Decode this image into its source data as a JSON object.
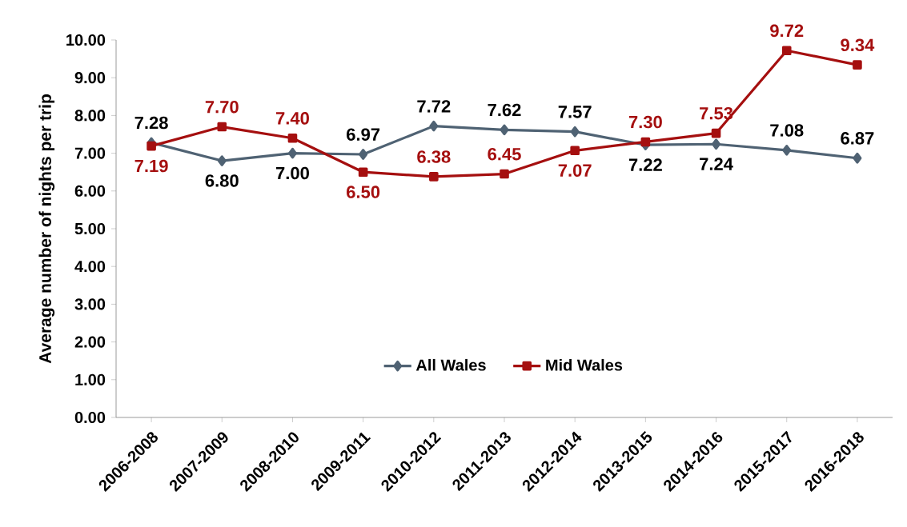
{
  "chart_data": {
    "type": "line",
    "ylabel": "Average number of nights per trip",
    "categories": [
      "2006-2008",
      "2007-2009",
      "2008-2010",
      "2009-2011",
      "2010-2012",
      "2011-2013",
      "2012-2014",
      "2013-2015",
      "2014-2016",
      "2015-2017",
      "2016-2018"
    ],
    "series": [
      {
        "name": "All Wales",
        "color": "#4f6273",
        "marker": "diamond",
        "values": [
          7.28,
          6.8,
          7.0,
          6.97,
          7.72,
          7.62,
          7.57,
          7.22,
          7.24,
          7.08,
          6.87
        ],
        "value_labels": [
          "7.28",
          "6.80",
          "7.00",
          "6.97",
          "7.72",
          "7.62",
          "7.57",
          "7.22",
          "7.24",
          "7.08",
          "6.87"
        ]
      },
      {
        "name": "Mid Wales",
        "color": "#a50f0f",
        "marker": "square",
        "values": [
          7.19,
          7.7,
          7.4,
          6.5,
          6.38,
          6.45,
          7.07,
          7.3,
          7.53,
          9.72,
          9.34
        ],
        "value_labels": [
          "7.19",
          "7.70",
          "7.40",
          "6.50",
          "6.38",
          "6.45",
          "7.07",
          "7.30",
          "7.53",
          "9.72",
          "9.34"
        ]
      }
    ],
    "ylim": [
      0,
      10
    ],
    "yticks": [
      {
        "value": 0,
        "label": "0.00"
      },
      {
        "value": 1,
        "label": "1.00"
      },
      {
        "value": 2,
        "label": "2.00"
      },
      {
        "value": 3,
        "label": "3.00"
      },
      {
        "value": 4,
        "label": "4.00"
      },
      {
        "value": 5,
        "label": "5.00"
      },
      {
        "value": 6,
        "label": "6.00"
      },
      {
        "value": 7,
        "label": "7.00"
      },
      {
        "value": 8,
        "label": "8.00"
      },
      {
        "value": 9,
        "label": "9.00"
      },
      {
        "value": 10,
        "label": "10.00"
      }
    ],
    "grid": false,
    "legend": "bottom",
    "line_style": "solid"
  }
}
